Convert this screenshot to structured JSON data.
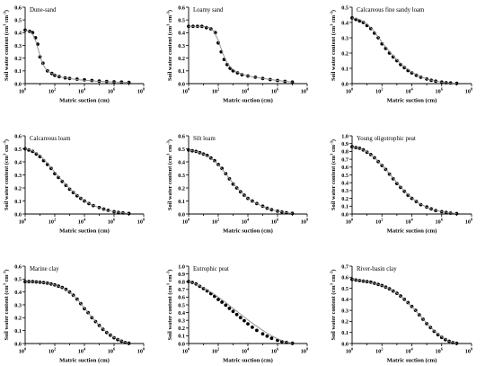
{
  "ylabel_text": "Soil water content (cm",
  "ylabel_sup1": "3",
  "ylabel_mid": " cm",
  "ylabel_sup2": "-3",
  "ylabel_end": ")",
  "xlabel": "Matric suction (cm)",
  "x_tick_labels": [
    "10",
    "10",
    "10",
    "10",
    "10"
  ],
  "x_tick_exponents": [
    "0",
    "2",
    "4",
    "6",
    "8"
  ],
  "chart_data": [
    {
      "type": "scatter",
      "title": "Dune-sand",
      "xscale": "log",
      "xlim": [
        1,
        100000000
      ],
      "ylim": [
        0,
        0.6
      ],
      "y_ticks": [
        "0.0",
        "0.1",
        "0.2",
        "0.3",
        "0.4",
        "0.5",
        "0.6"
      ],
      "series": [
        {
          "kind": "points",
          "log10_x": [
            0.0,
            0.3,
            0.5,
            0.7,
            0.85,
            1.0,
            1.2,
            1.5,
            1.8,
            2.0,
            2.3,
            2.7,
            3.0,
            3.5,
            4.0,
            4.5,
            5.0,
            5.5,
            6.0,
            6.5,
            7.0
          ],
          "y": [
            0.42,
            0.41,
            0.4,
            0.36,
            0.31,
            0.21,
            0.16,
            0.1,
            0.08,
            0.065,
            0.055,
            0.045,
            0.04,
            0.035,
            0.03,
            0.025,
            0.02,
            0.017,
            0.014,
            0.012,
            0.01
          ]
        },
        {
          "kind": "fit",
          "log10_x": [
            0.0,
            0.3,
            0.5,
            0.7,
            0.9,
            1.1,
            1.3,
            1.5,
            1.8,
            2.1,
            2.5,
            3.0,
            3.5,
            4.0,
            5.0,
            6.0,
            7.0
          ],
          "y": [
            0.42,
            0.41,
            0.39,
            0.34,
            0.26,
            0.18,
            0.13,
            0.1,
            0.08,
            0.065,
            0.05,
            0.04,
            0.032,
            0.026,
            0.018,
            0.013,
            0.01
          ]
        }
      ]
    },
    {
      "type": "scatter",
      "title": "Loamy sand",
      "xscale": "log",
      "xlim": [
        1,
        100000000
      ],
      "ylim": [
        0,
        0.6
      ],
      "y_ticks": [
        "0.0",
        "0.1",
        "0.2",
        "0.3",
        "0.4",
        "0.5",
        "0.6"
      ],
      "series": [
        {
          "kind": "points",
          "log10_x": [
            0.0,
            0.3,
            0.6,
            0.9,
            1.2,
            1.5,
            1.8,
            2.0,
            2.2,
            2.4,
            2.6,
            2.8,
            3.0,
            3.3,
            3.6,
            4.0,
            4.5,
            5.0,
            5.5,
            6.0,
            6.5,
            7.0
          ],
          "y": [
            0.45,
            0.45,
            0.45,
            0.45,
            0.44,
            0.43,
            0.4,
            0.32,
            0.25,
            0.19,
            0.15,
            0.12,
            0.1,
            0.085,
            0.07,
            0.06,
            0.05,
            0.04,
            0.032,
            0.025,
            0.018,
            0.012
          ]
        },
        {
          "kind": "fit",
          "log10_x": [
            0.0,
            0.5,
            1.0,
            1.4,
            1.7,
            2.0,
            2.3,
            2.6,
            2.9,
            3.2,
            3.6,
            4.0,
            5.0,
            6.0,
            7.0
          ],
          "y": [
            0.45,
            0.45,
            0.45,
            0.44,
            0.41,
            0.34,
            0.24,
            0.16,
            0.12,
            0.095,
            0.075,
            0.06,
            0.04,
            0.025,
            0.012
          ]
        }
      ]
    },
    {
      "type": "scatter",
      "title": "Calcareous fine sandy loam",
      "xscale": "log",
      "xlim": [
        1,
        100000000
      ],
      "ylim": [
        0,
        0.5
      ],
      "y_ticks": [
        "0.0",
        "0.1",
        "0.2",
        "0.3",
        "0.4",
        "0.5"
      ],
      "series": [
        {
          "kind": "points",
          "log10_x": [
            0.0,
            0.25,
            0.5,
            0.75,
            1.0,
            1.25,
            1.5,
            1.75,
            2.0,
            2.25,
            2.5,
            2.75,
            3.0,
            3.25,
            3.5,
            3.75,
            4.0,
            4.3,
            4.6,
            5.0,
            5.3,
            5.6,
            6.0,
            6.3,
            6.6,
            7.0
          ],
          "y": [
            0.43,
            0.42,
            0.41,
            0.4,
            0.38,
            0.36,
            0.33,
            0.3,
            0.26,
            0.23,
            0.2,
            0.175,
            0.15,
            0.125,
            0.105,
            0.085,
            0.07,
            0.055,
            0.042,
            0.03,
            0.022,
            0.016,
            0.01,
            0.006,
            0.004,
            0.002
          ]
        },
        {
          "kind": "fit",
          "log10_x": [
            0.0,
            0.5,
            1.0,
            1.5,
            2.0,
            2.5,
            3.0,
            3.5,
            4.0,
            4.5,
            5.0,
            5.5,
            6.0,
            6.5,
            7.0
          ],
          "y": [
            0.43,
            0.42,
            0.39,
            0.34,
            0.27,
            0.21,
            0.155,
            0.11,
            0.075,
            0.048,
            0.03,
            0.018,
            0.01,
            0.005,
            0.002
          ]
        }
      ]
    },
    {
      "type": "scatter",
      "title": "Calcareous loam",
      "xscale": "log",
      "xlim": [
        1,
        100000000
      ],
      "ylim": [
        0,
        0.6
      ],
      "y_ticks": [
        "0.0",
        "0.1",
        "0.2",
        "0.3",
        "0.4",
        "0.5",
        "0.6"
      ],
      "series": [
        {
          "kind": "points",
          "log10_x": [
            0.0,
            0.25,
            0.5,
            0.75,
            1.0,
            1.25,
            1.5,
            1.75,
            2.0,
            2.25,
            2.5,
            2.75,
            3.0,
            3.25,
            3.5,
            3.75,
            4.0,
            4.3,
            4.6,
            5.0,
            5.3,
            5.6,
            6.0,
            6.3,
            6.6,
            7.0
          ],
          "y": [
            0.5,
            0.49,
            0.48,
            0.46,
            0.44,
            0.41,
            0.38,
            0.35,
            0.31,
            0.28,
            0.25,
            0.22,
            0.19,
            0.165,
            0.14,
            0.12,
            0.1,
            0.08,
            0.065,
            0.05,
            0.038,
            0.028,
            0.018,
            0.012,
            0.008,
            0.004
          ]
        },
        {
          "kind": "fit",
          "log10_x": [
            0.0,
            0.5,
            1.0,
            1.5,
            2.0,
            2.5,
            3.0,
            3.5,
            4.0,
            4.5,
            5.0,
            5.5,
            6.0,
            6.5,
            7.0
          ],
          "y": [
            0.5,
            0.485,
            0.45,
            0.39,
            0.32,
            0.255,
            0.195,
            0.145,
            0.1,
            0.07,
            0.048,
            0.03,
            0.018,
            0.01,
            0.004
          ]
        }
      ]
    },
    {
      "type": "scatter",
      "title": "Silt loam",
      "xscale": "log",
      "xlim": [
        1,
        100000000
      ],
      "ylim": [
        0,
        0.6
      ],
      "y_ticks": [
        "0.0",
        "0.1",
        "0.2",
        "0.3",
        "0.4",
        "0.5",
        "0.6"
      ],
      "series": [
        {
          "kind": "points",
          "log10_x": [
            0.0,
            0.25,
            0.5,
            0.75,
            1.0,
            1.25,
            1.5,
            1.75,
            2.0,
            2.25,
            2.5,
            2.75,
            3.0,
            3.25,
            3.5,
            3.75,
            4.0,
            4.3,
            4.6,
            5.0,
            5.3,
            5.6,
            6.0,
            6.3,
            6.6,
            7.0
          ],
          "y": [
            0.49,
            0.485,
            0.48,
            0.47,
            0.46,
            0.45,
            0.43,
            0.41,
            0.38,
            0.35,
            0.31,
            0.27,
            0.23,
            0.2,
            0.17,
            0.145,
            0.12,
            0.1,
            0.08,
            0.06,
            0.045,
            0.033,
            0.022,
            0.015,
            0.01,
            0.005
          ]
        },
        {
          "kind": "fit",
          "log10_x": [
            0.0,
            0.5,
            1.0,
            1.5,
            2.0,
            2.5,
            3.0,
            3.5,
            4.0,
            4.5,
            5.0,
            5.5,
            6.0,
            6.5,
            7.0
          ],
          "y": [
            0.49,
            0.48,
            0.46,
            0.43,
            0.38,
            0.31,
            0.235,
            0.17,
            0.12,
            0.085,
            0.058,
            0.037,
            0.022,
            0.012,
            0.005
          ]
        }
      ]
    },
    {
      "type": "scatter",
      "title": "Young oligotrophic peat",
      "xscale": "log",
      "xlim": [
        1,
        100000000
      ],
      "ylim": [
        0,
        1.0
      ],
      "y_ticks": [
        "0.0",
        "0.1",
        "0.2",
        "0.3",
        "0.4",
        "0.5",
        "0.6",
        "0.7",
        "0.8",
        "0.9",
        "1.0"
      ],
      "series": [
        {
          "kind": "points",
          "log10_x": [
            0.0,
            0.25,
            0.5,
            0.75,
            1.0,
            1.25,
            1.5,
            1.75,
            2.0,
            2.25,
            2.5,
            2.75,
            3.0,
            3.25,
            3.5,
            3.75,
            4.0,
            4.3,
            4.6,
            5.0,
            5.3,
            5.6,
            6.0,
            6.3,
            6.6,
            7.0
          ],
          "y": [
            0.86,
            0.85,
            0.84,
            0.82,
            0.79,
            0.76,
            0.72,
            0.67,
            0.62,
            0.57,
            0.51,
            0.45,
            0.39,
            0.34,
            0.29,
            0.24,
            0.2,
            0.16,
            0.12,
            0.09,
            0.065,
            0.045,
            0.03,
            0.02,
            0.012,
            0.006
          ]
        },
        {
          "kind": "fit",
          "log10_x": [
            0.0,
            0.5,
            1.0,
            1.5,
            2.0,
            2.5,
            3.0,
            3.5,
            4.0,
            4.5,
            5.0,
            5.5,
            6.0,
            6.5,
            7.0
          ],
          "y": [
            0.86,
            0.84,
            0.795,
            0.72,
            0.625,
            0.515,
            0.4,
            0.295,
            0.205,
            0.135,
            0.087,
            0.053,
            0.03,
            0.015,
            0.006
          ]
        }
      ]
    },
    {
      "type": "scatter",
      "title": "Marine clay",
      "xscale": "log",
      "xlim": [
        1,
        100000000
      ],
      "ylim": [
        0,
        0.6
      ],
      "y_ticks": [
        "0.0",
        "0.1",
        "0.2",
        "0.3",
        "0.4",
        "0.5",
        "0.6"
      ],
      "series": [
        {
          "kind": "points",
          "log10_x": [
            0.0,
            0.25,
            0.5,
            0.75,
            1.0,
            1.25,
            1.5,
            1.75,
            2.0,
            2.25,
            2.5,
            2.75,
            3.0,
            3.25,
            3.5,
            3.75,
            4.0,
            4.25,
            4.5,
            4.75,
            5.0,
            5.25,
            5.5,
            5.75,
            6.0,
            6.25,
            6.5,
            6.75,
            7.0
          ],
          "y": [
            0.48,
            0.48,
            0.48,
            0.478,
            0.475,
            0.472,
            0.468,
            0.462,
            0.455,
            0.445,
            0.435,
            0.42,
            0.4,
            0.375,
            0.345,
            0.31,
            0.27,
            0.24,
            0.2,
            0.17,
            0.14,
            0.11,
            0.085,
            0.065,
            0.045,
            0.03,
            0.018,
            0.008,
            0.002
          ]
        },
        {
          "kind": "fit",
          "log10_x": [
            0.0,
            0.5,
            1.0,
            1.5,
            2.0,
            2.5,
            3.0,
            3.5,
            4.0,
            4.5,
            5.0,
            5.5,
            6.0,
            6.5,
            7.0
          ],
          "y": [
            0.48,
            0.479,
            0.475,
            0.468,
            0.455,
            0.435,
            0.4,
            0.345,
            0.275,
            0.205,
            0.14,
            0.087,
            0.047,
            0.02,
            0.002
          ]
        }
      ]
    },
    {
      "type": "scatter",
      "title": "Eutrophic peat",
      "xscale": "log",
      "xlim": [
        1,
        100000000
      ],
      "ylim": [
        0,
        1.0
      ],
      "y_ticks": [
        "0.0",
        "0.1",
        "0.2",
        "0.3",
        "0.4",
        "0.5",
        "0.6",
        "0.7",
        "0.8",
        "0.9",
        "1.0"
      ],
      "series": [
        {
          "kind": "points",
          "log10_x": [
            0.0,
            0.25,
            0.5,
            0.75,
            1.0,
            1.25,
            1.5,
            1.75,
            2.0,
            2.25,
            2.5,
            2.75,
            3.0,
            3.25,
            3.5,
            3.75,
            4.0,
            4.3,
            4.6,
            5.0,
            5.3,
            5.6,
            6.0,
            6.3,
            6.6,
            7.0
          ],
          "y": [
            0.8,
            0.79,
            0.77,
            0.74,
            0.71,
            0.68,
            0.645,
            0.61,
            0.57,
            0.535,
            0.495,
            0.455,
            0.415,
            0.375,
            0.335,
            0.295,
            0.255,
            0.21,
            0.17,
            0.125,
            0.095,
            0.068,
            0.042,
            0.026,
            0.014,
            0.004
          ]
        },
        {
          "kind": "fit",
          "log10_x": [
            0.0,
            0.5,
            1.0,
            1.5,
            2.0,
            2.5,
            3.0,
            3.5,
            4.0,
            4.5,
            5.0,
            5.5,
            6.0,
            6.5,
            7.0
          ],
          "y": [
            0.8,
            0.77,
            0.72,
            0.665,
            0.6,
            0.53,
            0.455,
            0.38,
            0.305,
            0.235,
            0.17,
            0.11,
            0.06,
            0.025,
            0.004
          ]
        }
      ]
    },
    {
      "type": "scatter",
      "title": "River-basin clay",
      "xscale": "log",
      "xlim": [
        1,
        100000000
      ],
      "ylim": [
        0,
        0.7
      ],
      "y_ticks": [
        "0.0",
        "0.1",
        "0.2",
        "0.3",
        "0.4",
        "0.5",
        "0.6",
        "0.7"
      ],
      "series": [
        {
          "kind": "points",
          "log10_x": [
            0.0,
            0.25,
            0.5,
            0.75,
            1.0,
            1.25,
            1.5,
            1.75,
            2.0,
            2.25,
            2.5,
            2.75,
            3.0,
            3.25,
            3.5,
            3.75,
            4.0,
            4.25,
            4.5,
            4.75,
            5.0,
            5.25,
            5.5,
            5.75,
            6.0,
            6.25,
            6.5,
            6.75,
            7.0
          ],
          "y": [
            0.58,
            0.575,
            0.57,
            0.565,
            0.56,
            0.555,
            0.545,
            0.535,
            0.525,
            0.51,
            0.495,
            0.475,
            0.455,
            0.43,
            0.4,
            0.37,
            0.335,
            0.3,
            0.26,
            0.22,
            0.18,
            0.145,
            0.11,
            0.08,
            0.055,
            0.035,
            0.02,
            0.008,
            0.002
          ]
        },
        {
          "kind": "fit",
          "log10_x": [
            0.0,
            0.5,
            1.0,
            1.5,
            2.0,
            2.5,
            3.0,
            3.5,
            4.0,
            4.5,
            5.0,
            5.5,
            6.0,
            6.5,
            7.0
          ],
          "y": [
            0.58,
            0.572,
            0.56,
            0.545,
            0.525,
            0.495,
            0.455,
            0.4,
            0.335,
            0.26,
            0.185,
            0.115,
            0.06,
            0.02,
            0.002
          ]
        }
      ]
    }
  ]
}
